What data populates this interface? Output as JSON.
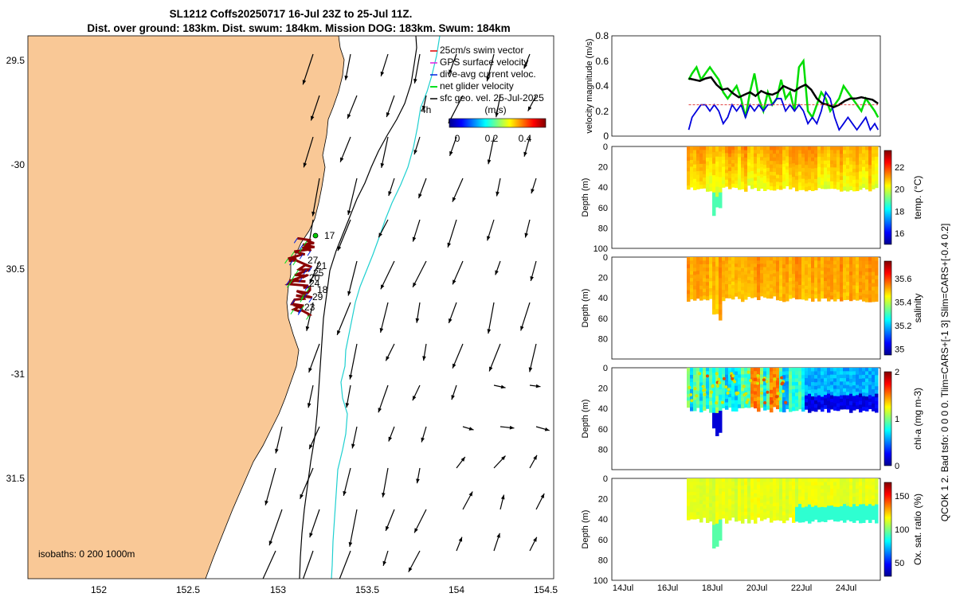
{
  "title_line1": "SL1212 Coffs20250717 16-Jul 23Z to 25-Jul 11Z.",
  "title_line2": "Dist. over ground: 183km. Dist. swum: 184km. Mission DOG: 183km. Swum: 184km",
  "colors": {
    "land": "#f9c896",
    "coast_line": "#000000",
    "isobath_200": "#000000",
    "isobath_1000": "#1fd0d0",
    "vector": "#000000"
  },
  "map": {
    "lon_ticks": [
      "152",
      "152.5",
      "153",
      "153.5",
      "154",
      "154.5"
    ],
    "lat_ticks": [
      "29.5",
      "-30",
      "30.5",
      "-31",
      "31.5"
    ],
    "isobaths_label": "isobaths: 0   200  1000m",
    "legend": [
      {
        "label": "25cm/s swim vector",
        "color": "#e00000"
      },
      {
        "label": "GPS surface velocity",
        "color": "#e020e0"
      },
      {
        "label": "dive-avg current veloc.",
        "color": "#0020e0"
      },
      {
        "label": "net glider velocity",
        "color": "#00e020"
      },
      {
        "label": "sfc geo. vel. 25-Jul-2025",
        "color": "#000000"
      }
    ],
    "time_label": "4h",
    "colorbar_title": "(m/s)",
    "colorbar_ticks": [
      "0",
      "0.2",
      "0.4"
    ],
    "day_markers": [
      "17",
      "21",
      "25",
      "20",
      "24",
      "18",
      "29",
      "23",
      "27"
    ]
  },
  "chart_data": [
    {
      "type": "line",
      "title": "velocity magnitude",
      "ylabel": "velocity magnitude (m/s)",
      "ylim": [
        0,
        0.8
      ],
      "yticks": [
        "0",
        "0.2",
        "0.4",
        "0.6",
        "0.8"
      ],
      "x_range": [
        "16.9-Jul",
        "25.5-Jul"
      ],
      "series": [
        {
          "name": "net glider velocity",
          "color": "#00dd00",
          "x": [
            16.95,
            17.1,
            17.3,
            17.5,
            17.7,
            17.9,
            18.1,
            18.3,
            18.5,
            18.7,
            18.9,
            19.1,
            19.3,
            19.5,
            19.7,
            19.9,
            20.1,
            20.3,
            20.5,
            20.7,
            20.9,
            21.1,
            21.3,
            21.5,
            21.7,
            21.9,
            22.1,
            22.3,
            22.5,
            22.7,
            22.9,
            23.1,
            23.3,
            23.5,
            23.7,
            23.9,
            24.1,
            24.3,
            24.5,
            24.7,
            24.9,
            25.1,
            25.3,
            25.45
          ],
          "y": [
            0.45,
            0.5,
            0.55,
            0.45,
            0.5,
            0.55,
            0.5,
            0.45,
            0.35,
            0.3,
            0.35,
            0.4,
            0.3,
            0.15,
            0.35,
            0.5,
            0.3,
            0.2,
            0.35,
            0.25,
            0.3,
            0.45,
            0.3,
            0.35,
            0.2,
            0.55,
            0.6,
            0.2,
            0.15,
            0.25,
            0.35,
            0.3,
            0.2,
            0.25,
            0.3,
            0.4,
            0.35,
            0.3,
            0.25,
            0.2,
            0.3,
            0.25,
            0.2,
            0.15
          ]
        },
        {
          "name": "dive-avg current veloc.",
          "color": "#0000dd",
          "x": [
            16.95,
            17.1,
            17.3,
            17.5,
            17.7,
            17.9,
            18.1,
            18.3,
            18.5,
            18.7,
            18.9,
            19.1,
            19.3,
            19.5,
            19.7,
            19.9,
            20.1,
            20.3,
            20.5,
            20.7,
            20.9,
            21.1,
            21.3,
            21.5,
            21.7,
            21.9,
            22.1,
            22.3,
            22.5,
            22.7,
            22.9,
            23.1,
            23.3,
            23.5,
            23.7,
            23.9,
            24.1,
            24.3,
            24.5,
            24.7,
            24.9,
            25.1,
            25.3,
            25.45
          ],
          "y": [
            0.05,
            0.15,
            0.2,
            0.25,
            0.25,
            0.2,
            0.25,
            0.2,
            0.1,
            0.15,
            0.25,
            0.2,
            0.25,
            0.15,
            0.25,
            0.2,
            0.25,
            0.2,
            0.25,
            0.25,
            0.3,
            0.3,
            0.2,
            0.25,
            0.2,
            0.25,
            0.2,
            0.1,
            0.15,
            0.1,
            0.2,
            0.35,
            0.3,
            0.15,
            0.05,
            0.1,
            0.15,
            0.1,
            0.05,
            0.1,
            0.15,
            0.05,
            0.1,
            0.05
          ]
        },
        {
          "name": "GPS surface velocity",
          "color": "#000000",
          "x": [
            16.95,
            17.2,
            17.45,
            17.7,
            17.95,
            18.2,
            18.45,
            18.7,
            18.95,
            19.2,
            19.45,
            19.7,
            19.95,
            20.2,
            20.45,
            20.7,
            20.95,
            21.2,
            21.45,
            21.7,
            21.95,
            22.2,
            22.45,
            22.7,
            22.95,
            23.2,
            23.45,
            23.7,
            23.95,
            24.2,
            24.45,
            24.7,
            24.95,
            25.2,
            25.45
          ],
          "y": [
            0.46,
            0.45,
            0.44,
            0.46,
            0.47,
            0.41,
            0.37,
            0.38,
            0.34,
            0.31,
            0.33,
            0.35,
            0.32,
            0.36,
            0.34,
            0.33,
            0.35,
            0.4,
            0.38,
            0.36,
            0.39,
            0.41,
            0.37,
            0.3,
            0.26,
            0.25,
            0.23,
            0.25,
            0.28,
            0.3,
            0.3,
            0.31,
            0.3,
            0.29,
            0.26
          ]
        },
        {
          "name": "swim (25cm/s)",
          "color": "#e04040",
          "x": [
            16.95,
            25.45
          ],
          "y": [
            0.25,
            0.25
          ]
        }
      ]
    },
    {
      "type": "heatmap",
      "title": "temperature section",
      "ylabel": "Depth (m)",
      "ylim": [
        0,
        100
      ],
      "yticks": [
        "0",
        "20",
        "40",
        "60",
        "80",
        "100"
      ],
      "colorbar_label": "temp. (°C)",
      "colorbar_ticks": [
        "22",
        "20",
        "18",
        "16"
      ],
      "clim": [
        15,
        23.5
      ]
    },
    {
      "type": "heatmap",
      "title": "salinity section",
      "ylabel": "Depth (m)",
      "ylim": [
        0,
        100
      ],
      "yticks": [
        "0",
        "20",
        "40",
        "60",
        "80"
      ],
      "colorbar_label": "salinity",
      "colorbar_ticks": [
        "35.6",
        "35.4",
        "35.2",
        "35"
      ],
      "clim": [
        34.95,
        35.75
      ]
    },
    {
      "type": "heatmap",
      "title": "chlorophyll section",
      "ylabel": "Depth (m)",
      "ylim": [
        0,
        100
      ],
      "yticks": [
        "0",
        "20",
        "40",
        "60",
        "80"
      ],
      "colorbar_label": "chl-a (mg m-3)",
      "colorbar_ticks": [
        "2",
        "1",
        "0"
      ],
      "clim": [
        0,
        2
      ]
    },
    {
      "type": "heatmap",
      "title": "oxygen saturation section",
      "ylabel": "Depth (m)",
      "ylim": [
        0,
        100
      ],
      "yticks": [
        "0",
        "20",
        "40",
        "60",
        "80",
        "100"
      ],
      "colorbar_label": "Ox. sat. ratio (%)",
      "colorbar_ticks": [
        "150",
        "100",
        "50"
      ],
      "clim": [
        30,
        170
      ],
      "x_ticks": [
        "14Jul",
        "16Jul",
        "18Jul",
        "20Jul",
        "22Jul",
        "24Jul"
      ]
    }
  ],
  "side_labels": {
    "qc_text": "QCOK 1  2. Bad tsfo: 0  0  0  0. Tlim=CARS+[-1 3] Slim=CARS+[-0.4 0.2]"
  }
}
